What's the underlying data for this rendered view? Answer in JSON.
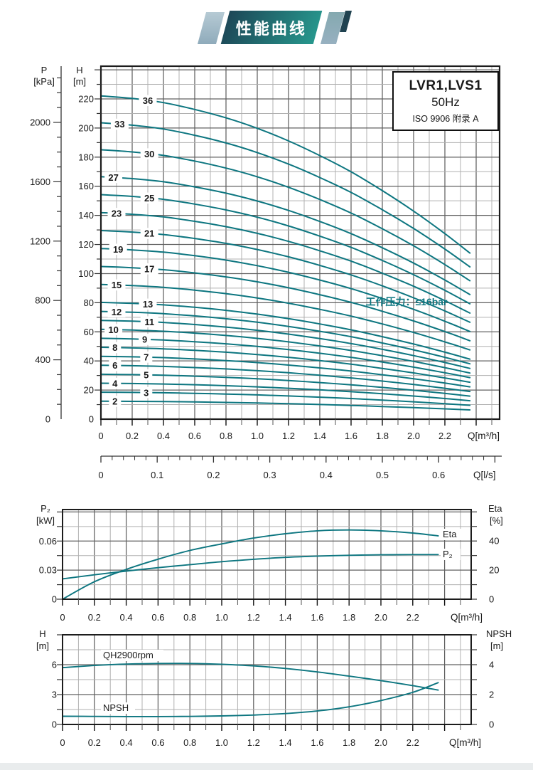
{
  "header": {
    "title": "性能曲线"
  },
  "chart_data": [
    {
      "type": "line",
      "name": "multi-stage H-Q performance curves",
      "title_box": {
        "line1": "LVR1,LVS1",
        "line2": "50Hz",
        "line3": "ISO 9906 附录 A"
      },
      "annotation": "工作压力：≤16bar",
      "curve_color": "#0d7680",
      "x_axis": {
        "title": "Q[m³/h]",
        "labels": [
          "0",
          "0.2",
          "0.4",
          "0.6",
          "0.8",
          "1.0",
          "1.2",
          "1.4",
          "1.6",
          "1.8",
          "2.0",
          "2.2"
        ],
        "minor_step": 0.1,
        "max": 2.55
      },
      "x_axis_ls": {
        "title": "Q[l/s]",
        "labels": [
          "0",
          "0.1",
          "0.2",
          "0.3",
          "0.4",
          "0.5",
          "0.6"
        ],
        "minor_step": 0.02,
        "m3h_per_ls": 3.6
      },
      "y_axis_h": {
        "title": "H",
        "unit": "[m]",
        "labels": [
          "0",
          "20",
          "40",
          "60",
          "80",
          "100",
          "120",
          "140",
          "160",
          "180",
          "200",
          "220"
        ],
        "minor_step": 10,
        "max": 242
      },
      "y_axis_p": {
        "title": "P",
        "unit": "[kPa]",
        "labels": [
          "0",
          "400",
          "800",
          "1200",
          "1600",
          "2000"
        ],
        "minor_step": 100
      },
      "stage_curves": {
        "q": [
          0,
          0.2,
          0.4,
          0.6,
          0.8,
          1.0,
          1.2,
          1.4,
          1.6,
          1.8,
          2.0,
          2.2,
          2.36
        ],
        "single_stage_head_m": [
          6.17,
          6.12,
          6.04,
          5.91,
          5.75,
          5.55,
          5.31,
          5.03,
          4.72,
          4.36,
          3.97,
          3.54,
          3.17
        ],
        "stages": [
          {
            "label": "36",
            "n": 36,
            "lq": 0.3
          },
          {
            "label": "33",
            "n": 33,
            "lq": 0.12
          },
          {
            "label": "30",
            "n": 30,
            "lq": 0.31
          },
          {
            "label": "27",
            "n": 27,
            "lq": 0.08
          },
          {
            "label": "25",
            "n": 25,
            "lq": 0.31
          },
          {
            "label": "23",
            "n": 23,
            "lq": 0.1
          },
          {
            "label": "21",
            "n": 21,
            "lq": 0.31
          },
          {
            "label": "19",
            "n": 19,
            "lq": 0.11
          },
          {
            "label": "17",
            "n": 17,
            "lq": 0.31
          },
          {
            "label": "15",
            "n": 15,
            "lq": 0.1
          },
          {
            "label": "13",
            "n": 13,
            "lq": 0.3
          },
          {
            "label": "12",
            "n": 12,
            "lq": 0.1
          },
          {
            "label": "11",
            "n": 11,
            "lq": 0.31
          },
          {
            "label": "10",
            "n": 10,
            "lq": 0.08
          },
          {
            "label": "9",
            "n": 9,
            "lq": 0.28
          },
          {
            "label": "8",
            "n": 8,
            "lq": 0.09
          },
          {
            "label": "7",
            "n": 7,
            "lq": 0.29
          },
          {
            "label": "6",
            "n": 6,
            "lq": 0.09
          },
          {
            "label": "5",
            "n": 5,
            "lq": 0.29
          },
          {
            "label": "4",
            "n": 4,
            "lq": 0.09
          },
          {
            "label": "3",
            "n": 3,
            "lq": 0.29
          },
          {
            "label": "2",
            "n": 2,
            "lq": 0.09
          }
        ]
      }
    },
    {
      "type": "line",
      "name": "P2 power and Eta efficiency vs Q",
      "y_axis_left": {
        "title": "P₂",
        "unit": "[kW]",
        "labels": [
          "0",
          "0.03",
          "0.06"
        ],
        "grid_step": 0.015,
        "max": 0.0925
      },
      "y_axis_right": {
        "title": "Eta",
        "unit": "[%]",
        "labels": [
          "0",
          "20",
          "40"
        ],
        "tick_step": 10
      },
      "x_axis": {
        "title": "Q[m³/h]",
        "labels": [
          "0",
          "0.2",
          "0.4",
          "0.6",
          "0.8",
          "1.0",
          "1.2",
          "1.4",
          "1.6",
          "1.8",
          "2.0",
          "2.2"
        ],
        "minor_step": 0.1
      },
      "series": [
        {
          "name": "Eta",
          "label": "Eta",
          "axis": "right",
          "points": [
            [
              0,
              0
            ],
            [
              0.2,
              12
            ],
            [
              0.4,
              20.5
            ],
            [
              0.6,
              27.5
            ],
            [
              0.8,
              33.5
            ],
            [
              1.0,
              38
            ],
            [
              1.2,
              42
            ],
            [
              1.4,
              45
            ],
            [
              1.6,
              47
            ],
            [
              1.8,
              47.6
            ],
            [
              2.0,
              47
            ],
            [
              2.2,
              45.5
            ],
            [
              2.36,
              43.5
            ]
          ]
        },
        {
          "name": "P2",
          "label": "P₂",
          "axis": "left",
          "points": [
            [
              0,
              0.021
            ],
            [
              0.2,
              0.0252
            ],
            [
              0.4,
              0.029
            ],
            [
              0.6,
              0.0325
            ],
            [
              0.8,
              0.0357
            ],
            [
              1.0,
              0.0387
            ],
            [
              1.2,
              0.0412
            ],
            [
              1.4,
              0.0432
            ],
            [
              1.6,
              0.0445
            ],
            [
              1.8,
              0.0453
            ],
            [
              2.0,
              0.0458
            ],
            [
              2.2,
              0.046
            ],
            [
              2.36,
              0.046
            ]
          ]
        }
      ]
    },
    {
      "type": "line",
      "name": "QH at 2900rpm and NPSH vs Q",
      "y_axis_left": {
        "title": "H",
        "unit": "[m]",
        "labels": [
          "0",
          "3",
          "6"
        ],
        "grid_step": 1.5,
        "max": 9
      },
      "y_axis_right": {
        "title": "NPSH",
        "unit": "[m]",
        "labels": [
          "0",
          "2",
          "4"
        ],
        "tick_step": 1
      },
      "x_axis": {
        "title": "Q[m³/h]",
        "labels": [
          "0",
          "0.2",
          "0.4",
          "0.6",
          "0.8",
          "1.0",
          "1.2",
          "1.4",
          "1.6",
          "1.8",
          "2.0",
          "2.2"
        ],
        "minor_step": 0.1
      },
      "series": [
        {
          "name": "QH2900rpm",
          "label": "QH2900rpm",
          "axis": "left",
          "points": [
            [
              0,
              5.7
            ],
            [
              0.2,
              5.92
            ],
            [
              0.4,
              6.06
            ],
            [
              0.6,
              6.12
            ],
            [
              0.8,
              6.12
            ],
            [
              1.0,
              6.04
            ],
            [
              1.2,
              5.88
            ],
            [
              1.4,
              5.62
            ],
            [
              1.6,
              5.27
            ],
            [
              1.8,
              4.85
            ],
            [
              2.0,
              4.4
            ],
            [
              2.2,
              3.9
            ],
            [
              2.36,
              3.45
            ]
          ]
        },
        {
          "name": "NPSH",
          "label": "NPSH",
          "axis": "right",
          "points": [
            [
              0,
              0.55
            ],
            [
              0.2,
              0.54
            ],
            [
              0.4,
              0.53
            ],
            [
              0.6,
              0.53
            ],
            [
              0.8,
              0.54
            ],
            [
              1.0,
              0.57
            ],
            [
              1.2,
              0.63
            ],
            [
              1.4,
              0.73
            ],
            [
              1.6,
              0.9
            ],
            [
              1.8,
              1.18
            ],
            [
              2.0,
              1.6
            ],
            [
              2.2,
              2.15
            ],
            [
              2.36,
              2.8
            ]
          ]
        }
      ]
    }
  ]
}
